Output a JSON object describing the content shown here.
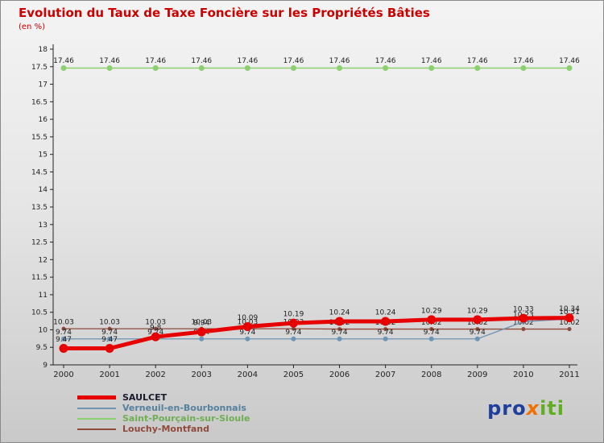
{
  "title": "Evolution du Taux de Taxe Foncière sur les Propriétés Bâties",
  "subtitle": "(en %)",
  "logo": {
    "pre": "pro",
    "x": "x",
    "post": "iti"
  },
  "chart_data": {
    "type": "line",
    "x": [
      2000,
      2001,
      2002,
      2003,
      2004,
      2005,
      2006,
      2007,
      2008,
      2009,
      2010,
      2011
    ],
    "series": [
      {
        "name": "SAULCET",
        "color": "#e60000",
        "label_color": "#1a1a1a",
        "line_width": 5,
        "marker_r": 5.5,
        "values": [
          9.47,
          9.47,
          9.8,
          9.94,
          10.09,
          10.19,
          10.24,
          10.24,
          10.29,
          10.29,
          10.33,
          10.34
        ]
      },
      {
        "name": "Verneuil-en-Bourbonnais",
        "color": "#6e94b4",
        "label_color": "#55809e",
        "line_width": 1.3,
        "marker_r": 3,
        "values": [
          9.74,
          9.74,
          9.74,
          9.74,
          9.74,
          9.74,
          9.74,
          9.74,
          9.74,
          9.74,
          10.23,
          10.31
        ]
      },
      {
        "name": "Saint-Pourçain-sur-Sioule",
        "color": "#8ccf6f",
        "label_color": "#6fae52",
        "line_width": 1.5,
        "marker_r": 3.5,
        "values": [
          17.46,
          17.46,
          17.46,
          17.46,
          17.46,
          17.46,
          17.46,
          17.46,
          17.46,
          17.46,
          17.46,
          17.46
        ]
      },
      {
        "name": "Louchy-Montfand",
        "color": "#8f4a3c",
        "label_color": "#8f4a3c",
        "line_width": 1.3,
        "marker_r": 2.5,
        "values": [
          10.03,
          10.03,
          10.03,
          10.03,
          10.03,
          10.03,
          10.02,
          10.02,
          10.02,
          10.02,
          10.02,
          10.02
        ]
      }
    ],
    "ylim": [
      9,
      18
    ],
    "ytick_step": 0.5,
    "grid": false,
    "legend_position": "bottom-left",
    "axis_color": "#222222",
    "tick_label_color": "#222222",
    "point_label_color": "#1d1d1d"
  }
}
